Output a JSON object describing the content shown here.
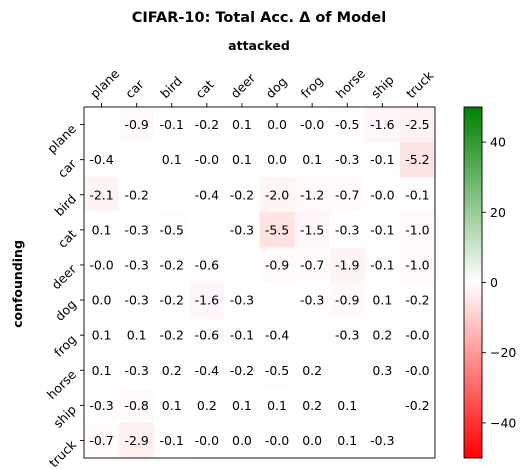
{
  "chart_data": {
    "type": "heatmap",
    "title": "CIFAR-10: Total Acc. Δ of Model",
    "xlabel": "attacked",
    "ylabel": "confounding",
    "x_categories": [
      "plane",
      "car",
      "bird",
      "cat",
      "deer",
      "dog",
      "frog",
      "horse",
      "ship",
      "truck"
    ],
    "y_categories": [
      "plane",
      "car",
      "bird",
      "cat",
      "deer",
      "dog",
      "frog",
      "horse",
      "ship",
      "truck"
    ],
    "values": [
      [
        null,
        "-0.9",
        "-0.1",
        "-0.2",
        "0.1",
        "0.0",
        "-0.0",
        "-0.5",
        "-1.6",
        "-2.5"
      ],
      [
        "-0.4",
        null,
        "0.1",
        "-0.0",
        "0.1",
        "0.0",
        "0.1",
        "-0.3",
        "-0.1",
        "-5.2"
      ],
      [
        "-2.1",
        "-0.2",
        null,
        "-0.4",
        "-0.2",
        "-2.0",
        "-1.2",
        "-0.7",
        "-0.0",
        "-0.1"
      ],
      [
        "0.1",
        "-0.3",
        "-0.5",
        null,
        "-0.3",
        "-5.5",
        "-1.5",
        "-0.3",
        "-0.1",
        "-1.0"
      ],
      [
        "-0.0",
        "-0.3",
        "-0.2",
        "-0.6",
        null,
        "-0.9",
        "-0.7",
        "-1.9",
        "-0.1",
        "-1.0"
      ],
      [
        "0.0",
        "-0.3",
        "-0.2",
        "-1.6",
        "-0.3",
        null,
        "-0.3",
        "-0.9",
        "0.1",
        "-0.2"
      ],
      [
        "0.1",
        "0.1",
        "-0.2",
        "-0.6",
        "-0.1",
        "-0.4",
        null,
        "-0.3",
        "0.2",
        "-0.0"
      ],
      [
        "0.1",
        "-0.3",
        "0.2",
        "-0.4",
        "-0.2",
        "-0.5",
        "0.2",
        null,
        "0.3",
        "-0.0"
      ],
      [
        "-0.3",
        "-0.8",
        "0.1",
        "0.2",
        "0.1",
        "0.1",
        "0.2",
        "0.1",
        null,
        "-0.2"
      ],
      [
        "-0.7",
        "-2.9",
        "-0.1",
        "-0.0",
        "0.0",
        "-0.0",
        "0.0",
        "0.1",
        "-0.3",
        null
      ]
    ],
    "colorbar": {
      "min": -50,
      "max": 50,
      "ticks": [
        "40",
        "20",
        "0",
        "−20",
        "−40"
      ],
      "tick_values": [
        40,
        20,
        0,
        -20,
        -40
      ],
      "colors": {
        "low": "#ff0000",
        "mid": "#ffffff",
        "high": "#008000"
      }
    }
  }
}
